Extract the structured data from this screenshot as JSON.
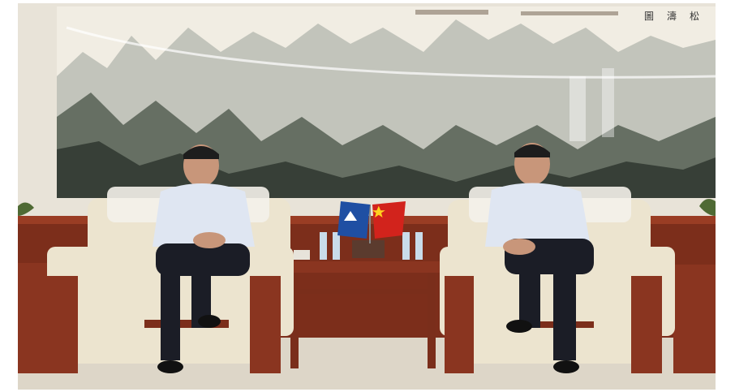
{
  "photo": {
    "subject": "meeting-room-photo",
    "painting_inscription": "松 濤 圖",
    "painting_seal_text": "",
    "flags": [
      "organization-flag",
      "china-flag"
    ],
    "colors": {
      "wall": "#e8e3d8",
      "painting_paper": "#f1ede3",
      "wood": "#8a3520",
      "chair_fabric": "#ece4cf",
      "floor": "#ddd6c8",
      "shirt": "#dfe6f2",
      "trousers": "#1b1d26"
    }
  }
}
